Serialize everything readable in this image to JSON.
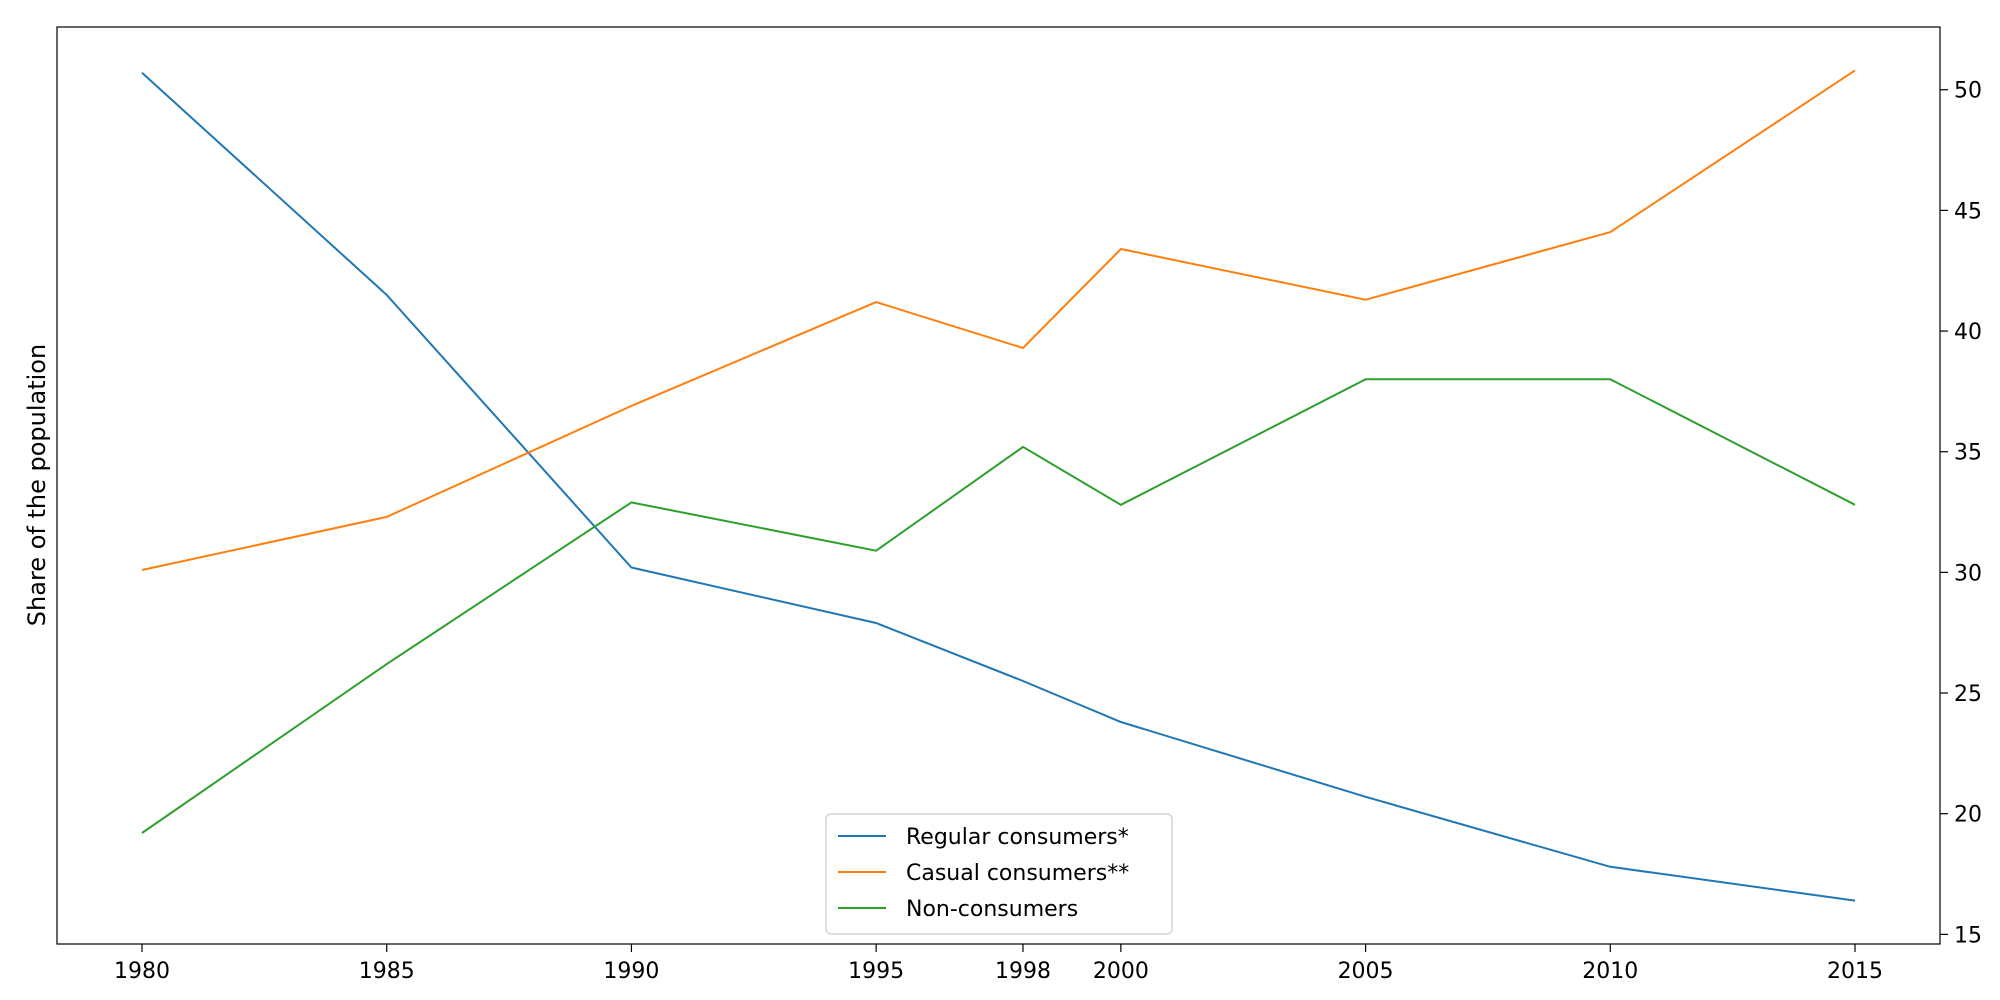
{
  "chart_data": {
    "type": "line",
    "title": "",
    "xlabel": "",
    "ylabel": "Share of the population",
    "y_axis_side": "right",
    "x": [
      1980,
      1985,
      1990,
      1995,
      1998,
      2000,
      2005,
      2010,
      2015
    ],
    "x_tick_labels": [
      "1980",
      "1985",
      "1990",
      "1995",
      "1998",
      "2000",
      "2005",
      "2010",
      "2015"
    ],
    "ylim": [
      14.6,
      52.6
    ],
    "y_ticks": [
      15,
      20,
      25,
      30,
      35,
      40,
      45,
      50
    ],
    "grid": false,
    "legend_position": "bottom-center",
    "series": [
      {
        "name": "Regular consumers*",
        "color": "#1f77b4",
        "values": [
          50.7,
          41.5,
          30.2,
          27.9,
          25.5,
          23.8,
          20.7,
          17.8,
          16.4
        ]
      },
      {
        "name": "Casual consumers**",
        "color": "#ff7f0e",
        "values": [
          30.1,
          32.3,
          36.9,
          41.2,
          39.3,
          43.4,
          41.3,
          44.1,
          50.8
        ]
      },
      {
        "name": "Non-consumers",
        "color": "#2ca02c",
        "values": [
          19.2,
          26.2,
          32.9,
          30.9,
          35.2,
          32.8,
          38.0,
          38.0,
          32.8
        ]
      }
    ]
  }
}
